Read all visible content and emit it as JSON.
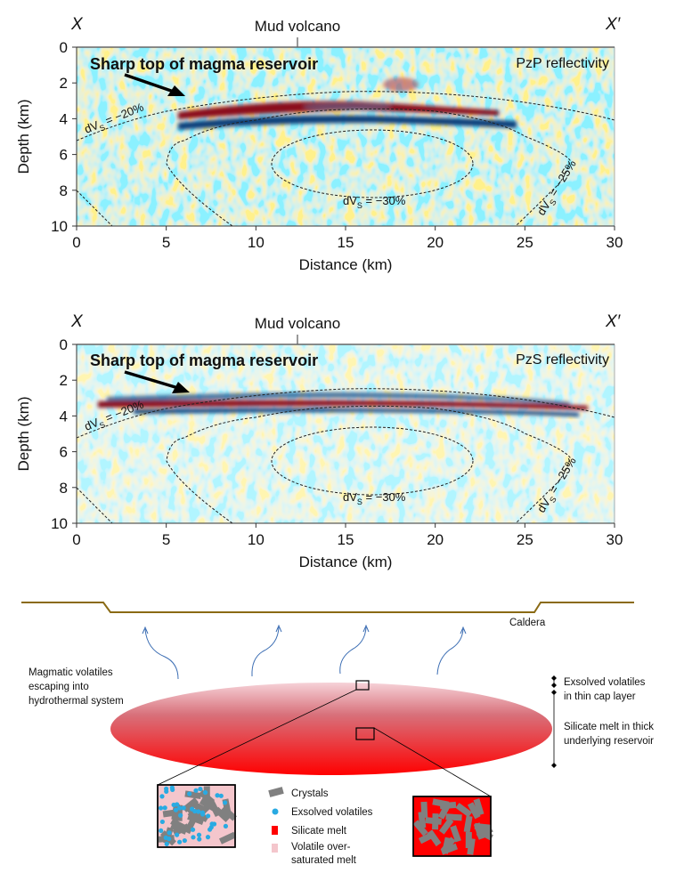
{
  "panels": [
    {
      "left_marker": "X",
      "right_marker": "X′",
      "top_label": "Mud volcano",
      "panel_label": "PzP reflectivity",
      "annotation": "Sharp top of magma reservoir",
      "ylabel": "Depth (km)",
      "xlabel": "Distance (km)",
      "xticks": [
        "0",
        "5",
        "10",
        "15",
        "20",
        "25",
        "30"
      ],
      "yticks": [
        "0",
        "2",
        "4",
        "6",
        "8",
        "10"
      ],
      "xlim": [
        0,
        30
      ],
      "ylim": [
        0,
        10
      ],
      "contours": {
        "c20": "dV",
        "c20_sub": "S",
        "c20_val": " = −20%",
        "c25": "dV",
        "c25_sub": "S",
        "c25_val": " = −25%",
        "c30": "dV",
        "c30_sub": "S",
        "c30_val": " = −30%"
      }
    },
    {
      "left_marker": "X",
      "right_marker": "X′",
      "top_label": "Mud volcano",
      "panel_label": "PzS reflectivity",
      "annotation": "Sharp top of magma reservoir",
      "ylabel": "Depth (km)",
      "xlabel": "Distance (km)",
      "xticks": [
        "0",
        "5",
        "10",
        "15",
        "20",
        "25",
        "30"
      ],
      "yticks": [
        "0",
        "2",
        "4",
        "6",
        "8",
        "10"
      ],
      "xlim": [
        0,
        30
      ],
      "ylim": [
        0,
        10
      ],
      "contours": {
        "c20": "dV",
        "c20_sub": "S",
        "c20_val": " = −20%",
        "c25": "dV",
        "c25_sub": "S",
        "c25_val": " = −25%",
        "c30": "dV",
        "c30_sub": "S",
        "c30_val": " = −30%"
      }
    }
  ],
  "colors": {
    "positive": "#8b0a1a",
    "negative": "#0d3f7a",
    "caldera": "#8a6a14",
    "melt": "#ff0000",
    "cap": "#f4c6cc",
    "volatiles": "#29aae2",
    "crystals": "#808080"
  },
  "schematic": {
    "caldera_label": "Caldera",
    "volatiles_label": [
      "Magmatic volatiles",
      "escaping into",
      "hydrothermal system"
    ],
    "cap_label": [
      "Exsolved volatiles",
      "in thin cap layer"
    ],
    "reservoir_label": [
      "Silicate melt in thick",
      "underlying reservoir"
    ],
    "legend": [
      {
        "label": "Crystals",
        "icon": "crystal-swatch"
      },
      {
        "label": "Exsolved volatiles",
        "icon": "volatile-dot"
      },
      {
        "label": "Silicate melt",
        "icon": "melt-swatch"
      },
      {
        "label": "Volatile over-",
        "label2": "saturated melt",
        "icon": "oversaturated-swatch"
      }
    ]
  }
}
